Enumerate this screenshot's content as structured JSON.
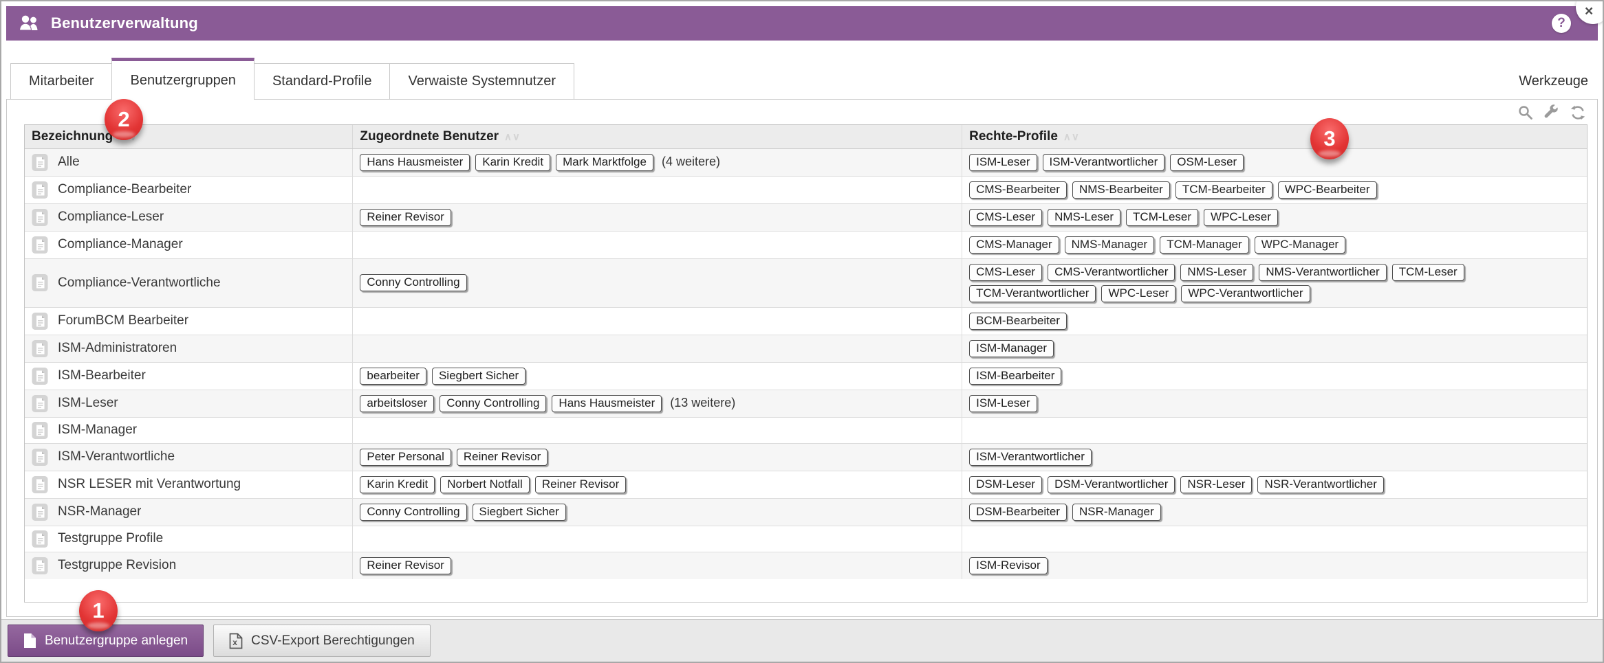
{
  "header": {
    "title": "Benutzerverwaltung",
    "help_glyph": "?",
    "close_glyph": "×"
  },
  "tabs": [
    {
      "label": "Mitarbeiter",
      "active": false
    },
    {
      "label": "Benutzergruppen",
      "active": true
    },
    {
      "label": "Standard-Profile",
      "active": false
    },
    {
      "label": "Verwaiste Systemnutzer",
      "active": false
    }
  ],
  "tabs_right": {
    "label": "Werkzeuge"
  },
  "icons": {
    "titlebar": "users-icon",
    "toolbar": [
      "search-icon",
      "wrench-icon",
      "refresh-icon"
    ],
    "row": "group-icon",
    "create_button": "page-icon",
    "csv_button": "csv-file-icon"
  },
  "table": {
    "columns": [
      {
        "label": "Bezeichnung",
        "sort": "ascending"
      },
      {
        "label": "Zugeordnete Benutzer",
        "sort": "none"
      },
      {
        "label": "Rechte-Profile",
        "sort": "none"
      }
    ],
    "rows": [
      {
        "name": "Alle",
        "users": [
          "Hans Hausmeister",
          "Karin Kredit",
          "Mark Marktfolge"
        ],
        "users_more": "(4 weitere)",
        "profiles": [
          "ISM-Leser",
          "ISM-Verantwortlicher",
          "OSM-Leser"
        ]
      },
      {
        "name": "Compliance-Bearbeiter",
        "users": [],
        "profiles": [
          "CMS-Bearbeiter",
          "NMS-Bearbeiter",
          "TCM-Bearbeiter",
          "WPC-Bearbeiter"
        ]
      },
      {
        "name": "Compliance-Leser",
        "users": [
          "Reiner Revisor"
        ],
        "profiles": [
          "CMS-Leser",
          "NMS-Leser",
          "TCM-Leser",
          "WPC-Leser"
        ]
      },
      {
        "name": "Compliance-Manager",
        "users": [],
        "profiles": [
          "CMS-Manager",
          "NMS-Manager",
          "TCM-Manager",
          "WPC-Manager"
        ]
      },
      {
        "name": "Compliance-Verantwortliche",
        "users": [
          "Conny Controlling"
        ],
        "profiles": [
          "CMS-Leser",
          "CMS-Verantwortlicher",
          "NMS-Leser",
          "NMS-Verantwortlicher",
          "TCM-Leser",
          "TCM-Verantwortlicher",
          "WPC-Leser",
          "WPC-Verantwortlicher"
        ]
      },
      {
        "name": "ForumBCM Bearbeiter",
        "users": [],
        "profiles": [
          "BCM-Bearbeiter"
        ]
      },
      {
        "name": "ISM-Administratoren",
        "users": [],
        "profiles": [
          "ISM-Manager"
        ]
      },
      {
        "name": "ISM-Bearbeiter",
        "users": [
          "bearbeiter",
          "Siegbert Sicher"
        ],
        "profiles": [
          "ISM-Bearbeiter"
        ]
      },
      {
        "name": "ISM-Leser",
        "users": [
          "arbeitsloser",
          "Conny Controlling",
          "Hans Hausmeister"
        ],
        "users_more": "(13 weitere)",
        "profiles": [
          "ISM-Leser"
        ]
      },
      {
        "name": "ISM-Manager",
        "users": [],
        "profiles": []
      },
      {
        "name": "ISM-Verantwortliche",
        "users": [
          "Peter Personal",
          "Reiner Revisor"
        ],
        "profiles": [
          "ISM-Verantwortlicher"
        ]
      },
      {
        "name": "NSR LESER mit Verantwortung",
        "users": [
          "Karin Kredit",
          "Norbert Notfall",
          "Reiner Revisor"
        ],
        "profiles": [
          "DSM-Leser",
          "DSM-Verantwortlicher",
          "NSR-Leser",
          "NSR-Verantwortlicher"
        ]
      },
      {
        "name": "NSR-Manager",
        "users": [
          "Conny Controlling",
          "Siegbert Sicher"
        ],
        "profiles": [
          "DSM-Bearbeiter",
          "NSR-Manager"
        ]
      },
      {
        "name": "Testgruppe Profile",
        "users": [],
        "profiles": []
      },
      {
        "name": "Testgruppe Revision",
        "users": [
          "Reiner Revisor"
        ],
        "profiles": [
          "ISM-Revisor"
        ]
      }
    ]
  },
  "footer": {
    "create_label": "Benutzergruppe anlegen",
    "csv_label": "CSV-Export Berechtigungen"
  },
  "annotations": [
    {
      "number": "1"
    },
    {
      "number": "2"
    },
    {
      "number": "3"
    }
  ],
  "colors": {
    "accent_purple": "#8a5b96",
    "badge_red": "#e23434",
    "table_header_bg": "#ececec",
    "zebra_row_bg": "#f6f6f6",
    "footer_bg": "#e9e9e9"
  }
}
